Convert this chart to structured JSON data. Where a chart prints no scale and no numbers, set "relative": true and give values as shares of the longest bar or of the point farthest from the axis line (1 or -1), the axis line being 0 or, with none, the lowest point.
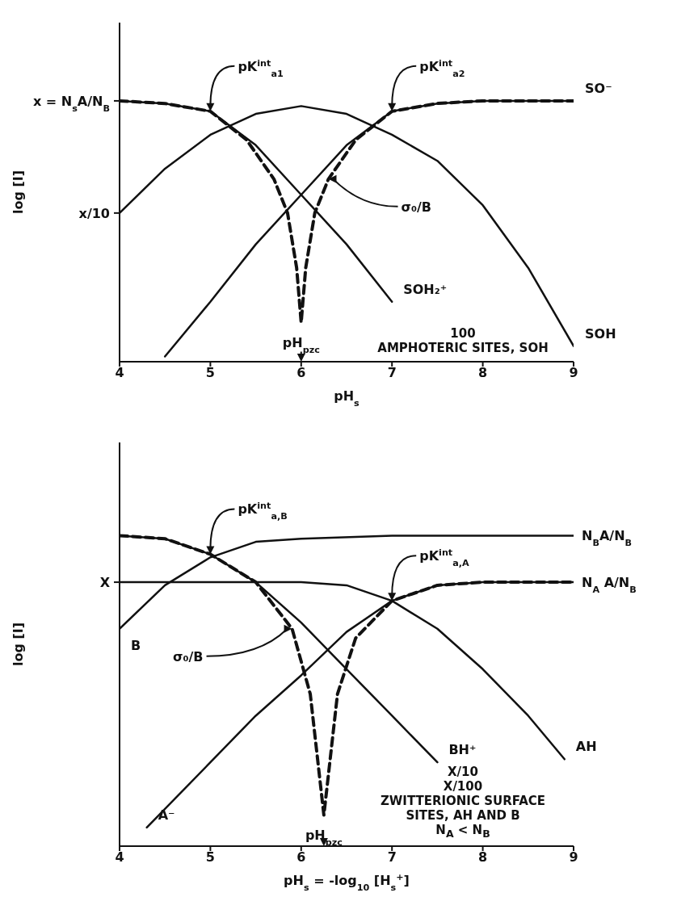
{
  "chart_data": [
    {
      "type": "line",
      "xlabel": "pH$_{s}$",
      "ylabel": "log [I]",
      "relative": true,
      "xlim": [
        4,
        9
      ],
      "xticks": [
        4,
        5,
        6,
        7,
        8,
        9
      ],
      "marker": "none",
      "line_style": "solid",
      "series": [
        {
          "name": "SOH",
          "color": "#111111",
          "x": [
            4,
            4.5,
            5,
            5.5,
            6,
            6.5,
            7,
            7.5,
            8,
            8.5,
            9
          ],
          "values": [
            0.57,
            0.74,
            0.87,
            0.95,
            0.98,
            0.95,
            0.87,
            0.77,
            0.6,
            0.36,
            0.06
          ]
        },
        {
          "name": "SOH₂⁺",
          "color": "#111111",
          "x": [
            4,
            4.5,
            5,
            5.5,
            6,
            6.5,
            7
          ],
          "values": [
            1,
            0.99,
            0.96,
            0.83,
            0.64,
            0.45,
            0.23
          ]
        },
        {
          "name": "SO⁻",
          "color": "#111111",
          "x": [
            4.5,
            5,
            5.5,
            6,
            6.5,
            7,
            7.5,
            8,
            9
          ],
          "values": [
            0.02,
            0.23,
            0.45,
            0.64,
            0.83,
            0.96,
            0.99,
            1,
            1
          ]
        },
        {
          "color": "#111111",
          "line_style": "dashed",
          "x": [
            4,
            4.5,
            5,
            5.4,
            5.7,
            5.85,
            5.95,
            6,
            6.05,
            6.15,
            6.3,
            6.6,
            7,
            7.5,
            8,
            9
          ],
          "values": [
            1,
            0.99,
            0.96,
            0.85,
            0.7,
            0.57,
            0.36,
            0.15,
            0.36,
            0.57,
            0.7,
            0.85,
            0.96,
            0.99,
            1,
            1
          ]
        }
      ],
      "annotations": [
        {
          "text": "pK$^{int}$$_{a1}$",
          "x": 5,
          "y": 0.96
        },
        {
          "text": "pK$^{int}$$_{a2}$",
          "x": 7,
          "y": 0.96
        },
        {
          "text": "σ₀/B",
          "x": 6.3,
          "y": 0.7
        },
        {
          "text": "pH$_{pzc}$",
          "x": 6,
          "y": 0.15
        },
        {
          "text": "x = N$_{s}$A/N$_{B}$",
          "x": 4,
          "y": 1
        },
        {
          "text": "x/10",
          "x": 4,
          "y": 0.57
        },
        "100",
        "AMPHOTERIC SITES, SOH"
      ]
    },
    {
      "type": "line",
      "xlabel": "pH$_{s}$ = -log$_{10}$ [H$_{s}$$^{+}$]",
      "ylabel": "log [I]",
      "relative": true,
      "xlim": [
        4,
        9
      ],
      "xticks": [
        4,
        5,
        6,
        7,
        8,
        9
      ],
      "marker": "none",
      "line_style": "solid",
      "series": [
        {
          "name": "B",
          "color": "#111111",
          "x": [
            9,
            7,
            6,
            5.5,
            5,
            4.5,
            4
          ],
          "values": [
            1,
            1,
            0.99,
            0.98,
            0.93,
            0.84,
            0.7
          ]
        },
        {
          "name": "BH⁺",
          "color": "#111111",
          "x": [
            4,
            4.5,
            5,
            5.5,
            6,
            6.5,
            7,
            7.5
          ],
          "values": [
            1,
            0.99,
            0.94,
            0.85,
            0.72,
            0.57,
            0.42,
            0.27
          ]
        },
        {
          "name": "AH",
          "color": "#111111",
          "x": [
            4,
            6,
            6.5,
            7,
            7.5,
            8,
            8.5,
            8.9
          ],
          "values": [
            0.85,
            0.85,
            0.84,
            0.79,
            0.7,
            0.57,
            0.42,
            0.28
          ]
        },
        {
          "name": "A⁻",
          "color": "#111111",
          "x": [
            9,
            8,
            7.5,
            7,
            6.5,
            6,
            5.5,
            5,
            4.3
          ],
          "values": [
            0.85,
            0.85,
            0.84,
            0.79,
            0.69,
            0.55,
            0.42,
            0.27,
            0.06
          ]
        },
        {
          "color": "#111111",
          "line_style": "dashed",
          "x": [
            4,
            4.5,
            5,
            5.5,
            5.9,
            6.1,
            6.25,
            6.4,
            6.6,
            7,
            7.5,
            8,
            9
          ],
          "values": [
            1,
            0.99,
            0.94,
            0.85,
            0.7,
            0.49,
            0.1,
            0.49,
            0.67,
            0.79,
            0.84,
            0.85,
            0.85
          ]
        }
      ],
      "annotations": [
        {
          "text": "pK$^{int}$$_{a,B}$",
          "x": 5,
          "y": 0.94
        },
        {
          "text": "pK$^{int}$$_{a,A}$",
          "x": 7,
          "y": 0.79
        },
        {
          "text": "σ₀/B",
          "x": 5.9,
          "y": 0.7
        },
        {
          "text": "pH$_{pzc}$",
          "x": 6.25,
          "y": 0.1
        },
        {
          "text": "X",
          "x": 4,
          "y": 0.85
        },
        "X/10",
        "X/100",
        {
          "text": "N$_{B}$A/N$_{B}$",
          "x": 9,
          "y": 1
        },
        {
          "text": "N$_{A}$ A/N$_{B}$",
          "x": 9,
          "y": 0.85
        },
        "ZWITTERIONIC SURFACE SITES, AH AND B",
        "N$_{A}$ < N$_{B}$"
      ]
    }
  ]
}
